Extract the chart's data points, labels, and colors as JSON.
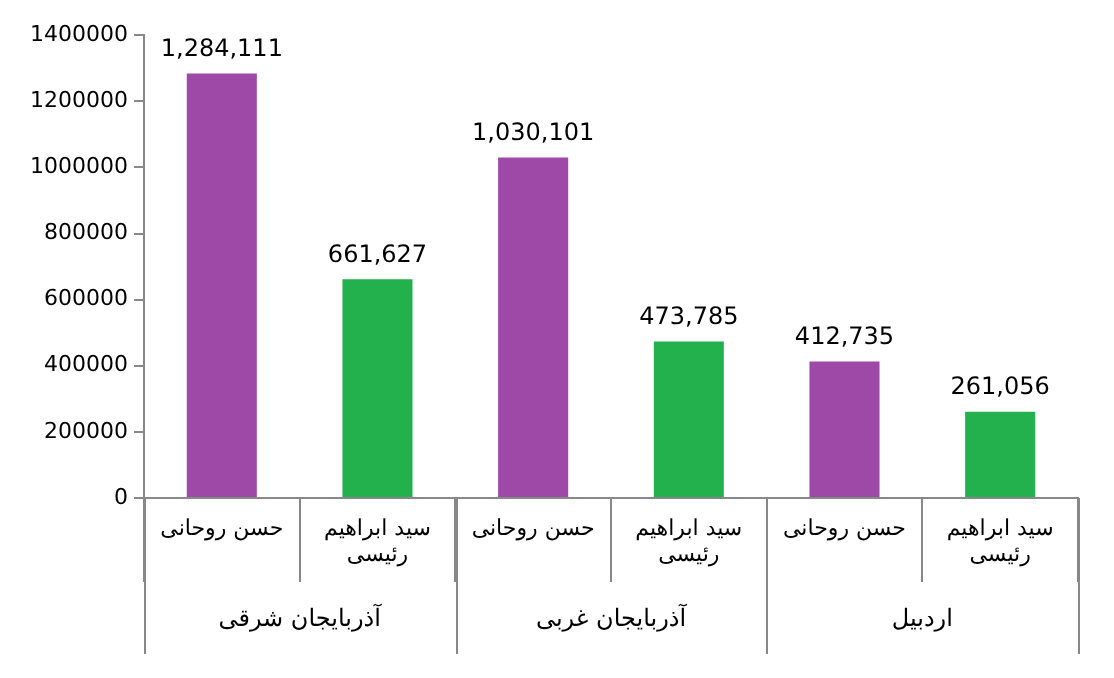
{
  "chart_data": {
    "type": "bar",
    "categories": [
      "حسن روحانی",
      "سید ابراهیم رئیسی",
      "حسن روحانی",
      "سید ابراهیم رئیسی",
      "حسن روحانی",
      "سید ابراهیم رئیسی"
    ],
    "values": [
      1284111,
      661627,
      1030101,
      473785,
      412735,
      261056
    ],
    "value_labels": [
      "1,284,111",
      "661,627",
      "1,030,101",
      "473,785",
      "412,735",
      "261,056"
    ],
    "colors": [
      "#9e48a8",
      "#22b14c",
      "#9e48a8",
      "#22b14c",
      "#9e48a8",
      "#22b14c"
    ],
    "annotations": [
      "آذربایجان شرقی",
      "آذربایجان غربی",
      "اردبیل"
    ],
    "ylim": [
      0,
      1400000
    ],
    "yticks": [
      0,
      200000,
      400000,
      600000,
      800000,
      1000000,
      1200000,
      1400000
    ],
    "grid": false,
    "legend": false
  }
}
